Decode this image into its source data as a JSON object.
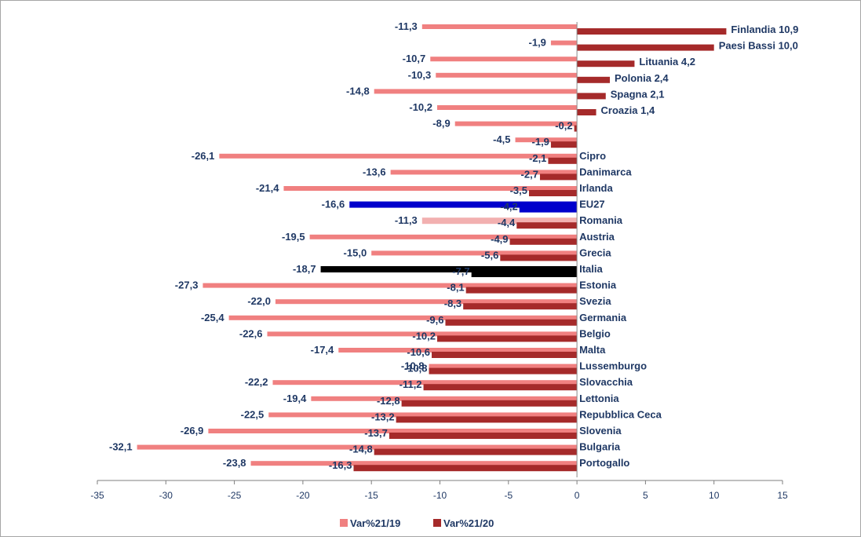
{
  "chart_data": {
    "type": "bar",
    "orientation": "horizontal",
    "title": "",
    "xlabel": "",
    "ylabel": "",
    "xlim": [
      -35,
      15
    ],
    "x_ticks": [
      "-35",
      "-30",
      "-25",
      "-20",
      "-15",
      "-10",
      "-5",
      "0",
      "5",
      "10",
      "15"
    ],
    "grid": false,
    "legend_position": "bottom",
    "categories": [
      "Finlandia",
      "Paesi Bassi",
      "Lituania",
      "Polonia",
      "Spagna",
      "Croazia",
      "",
      "",
      "Cipro",
      "Danimarca",
      "Irlanda",
      "EU27",
      "Romania",
      "Austria",
      "Grecia",
      "Italia",
      "Estonia",
      "Svezia",
      "Germania",
      "Belgio",
      "Malta",
      "Lussemburgo",
      "Slovacchia",
      "Lettonia",
      "Repubblica Ceca",
      "Slovenia",
      "Bulgaria",
      "Portogallo"
    ],
    "series": [
      {
        "name": "Var%21/19",
        "color": "#f08080",
        "values": [
          -11.3,
          -1.9,
          -10.7,
          -10.3,
          -14.8,
          -10.2,
          -8.9,
          -4.5,
          -26.1,
          -13.6,
          -21.4,
          -16.6,
          -11.3,
          -19.5,
          -15.0,
          -18.7,
          -27.3,
          -22.0,
          -25.4,
          -22.6,
          -17.4,
          -10.8,
          -22.2,
          -19.4,
          -22.5,
          -26.9,
          -32.1,
          -23.8
        ],
        "labels": [
          "-11,3",
          "-1,9",
          "-10,7",
          "-10,3",
          "-14,8",
          "-10,2",
          "-8,9",
          "-4,5",
          "-26,1",
          "-13,6",
          "-21,4",
          "-16,6",
          "-11,3",
          "-19,5",
          "-15,0",
          "-18,7",
          "-27,3",
          "-22,0",
          "-25,4",
          "-22,6",
          "-17,4",
          "-10,8",
          "-22,2",
          "-19,4",
          "-22,5",
          "-26,9",
          "-32,1",
          "-23,8"
        ]
      },
      {
        "name": "Var%21/20",
        "color": "#a52a2a",
        "values": [
          10.9,
          10.0,
          4.2,
          2.4,
          2.1,
          1.4,
          -0.2,
          -1.9,
          -2.1,
          -2.7,
          -3.5,
          -4.2,
          -4.4,
          -4.9,
          -5.6,
          -7.7,
          -8.1,
          -8.3,
          -9.6,
          -10.2,
          -10.6,
          -10.8,
          -11.2,
          -12.8,
          -13.2,
          -13.7,
          -14.8,
          -16.3
        ],
        "labels": [
          "10,9",
          "10,0",
          "4,2",
          "2,4",
          "2,1",
          "1,4",
          "-0,2",
          "-1,9",
          "-2,1",
          "-2,7",
          "-3,5",
          "-4,2",
          "-4,4",
          "-4,9",
          "-5,6",
          "-7,7",
          "-8,1",
          "-8,3",
          "-9,6",
          "-10,2",
          "-10,6",
          "-10,8",
          "-11,2",
          "-12,8",
          "-13,2",
          "-13,7",
          "-14,8",
          "-16,3"
        ]
      }
    ],
    "highlights": {
      "EU27": {
        "series1_color": "#0000cc",
        "series2_color": "#0000cc"
      },
      "Italia": {
        "series1_color": "#000000",
        "series2_color": "#000000"
      },
      "Romania": {
        "series1_color": "#f2b0b0"
      }
    }
  },
  "legend": {
    "series1": "Var%21/19",
    "series2": "Var%21/20"
  }
}
